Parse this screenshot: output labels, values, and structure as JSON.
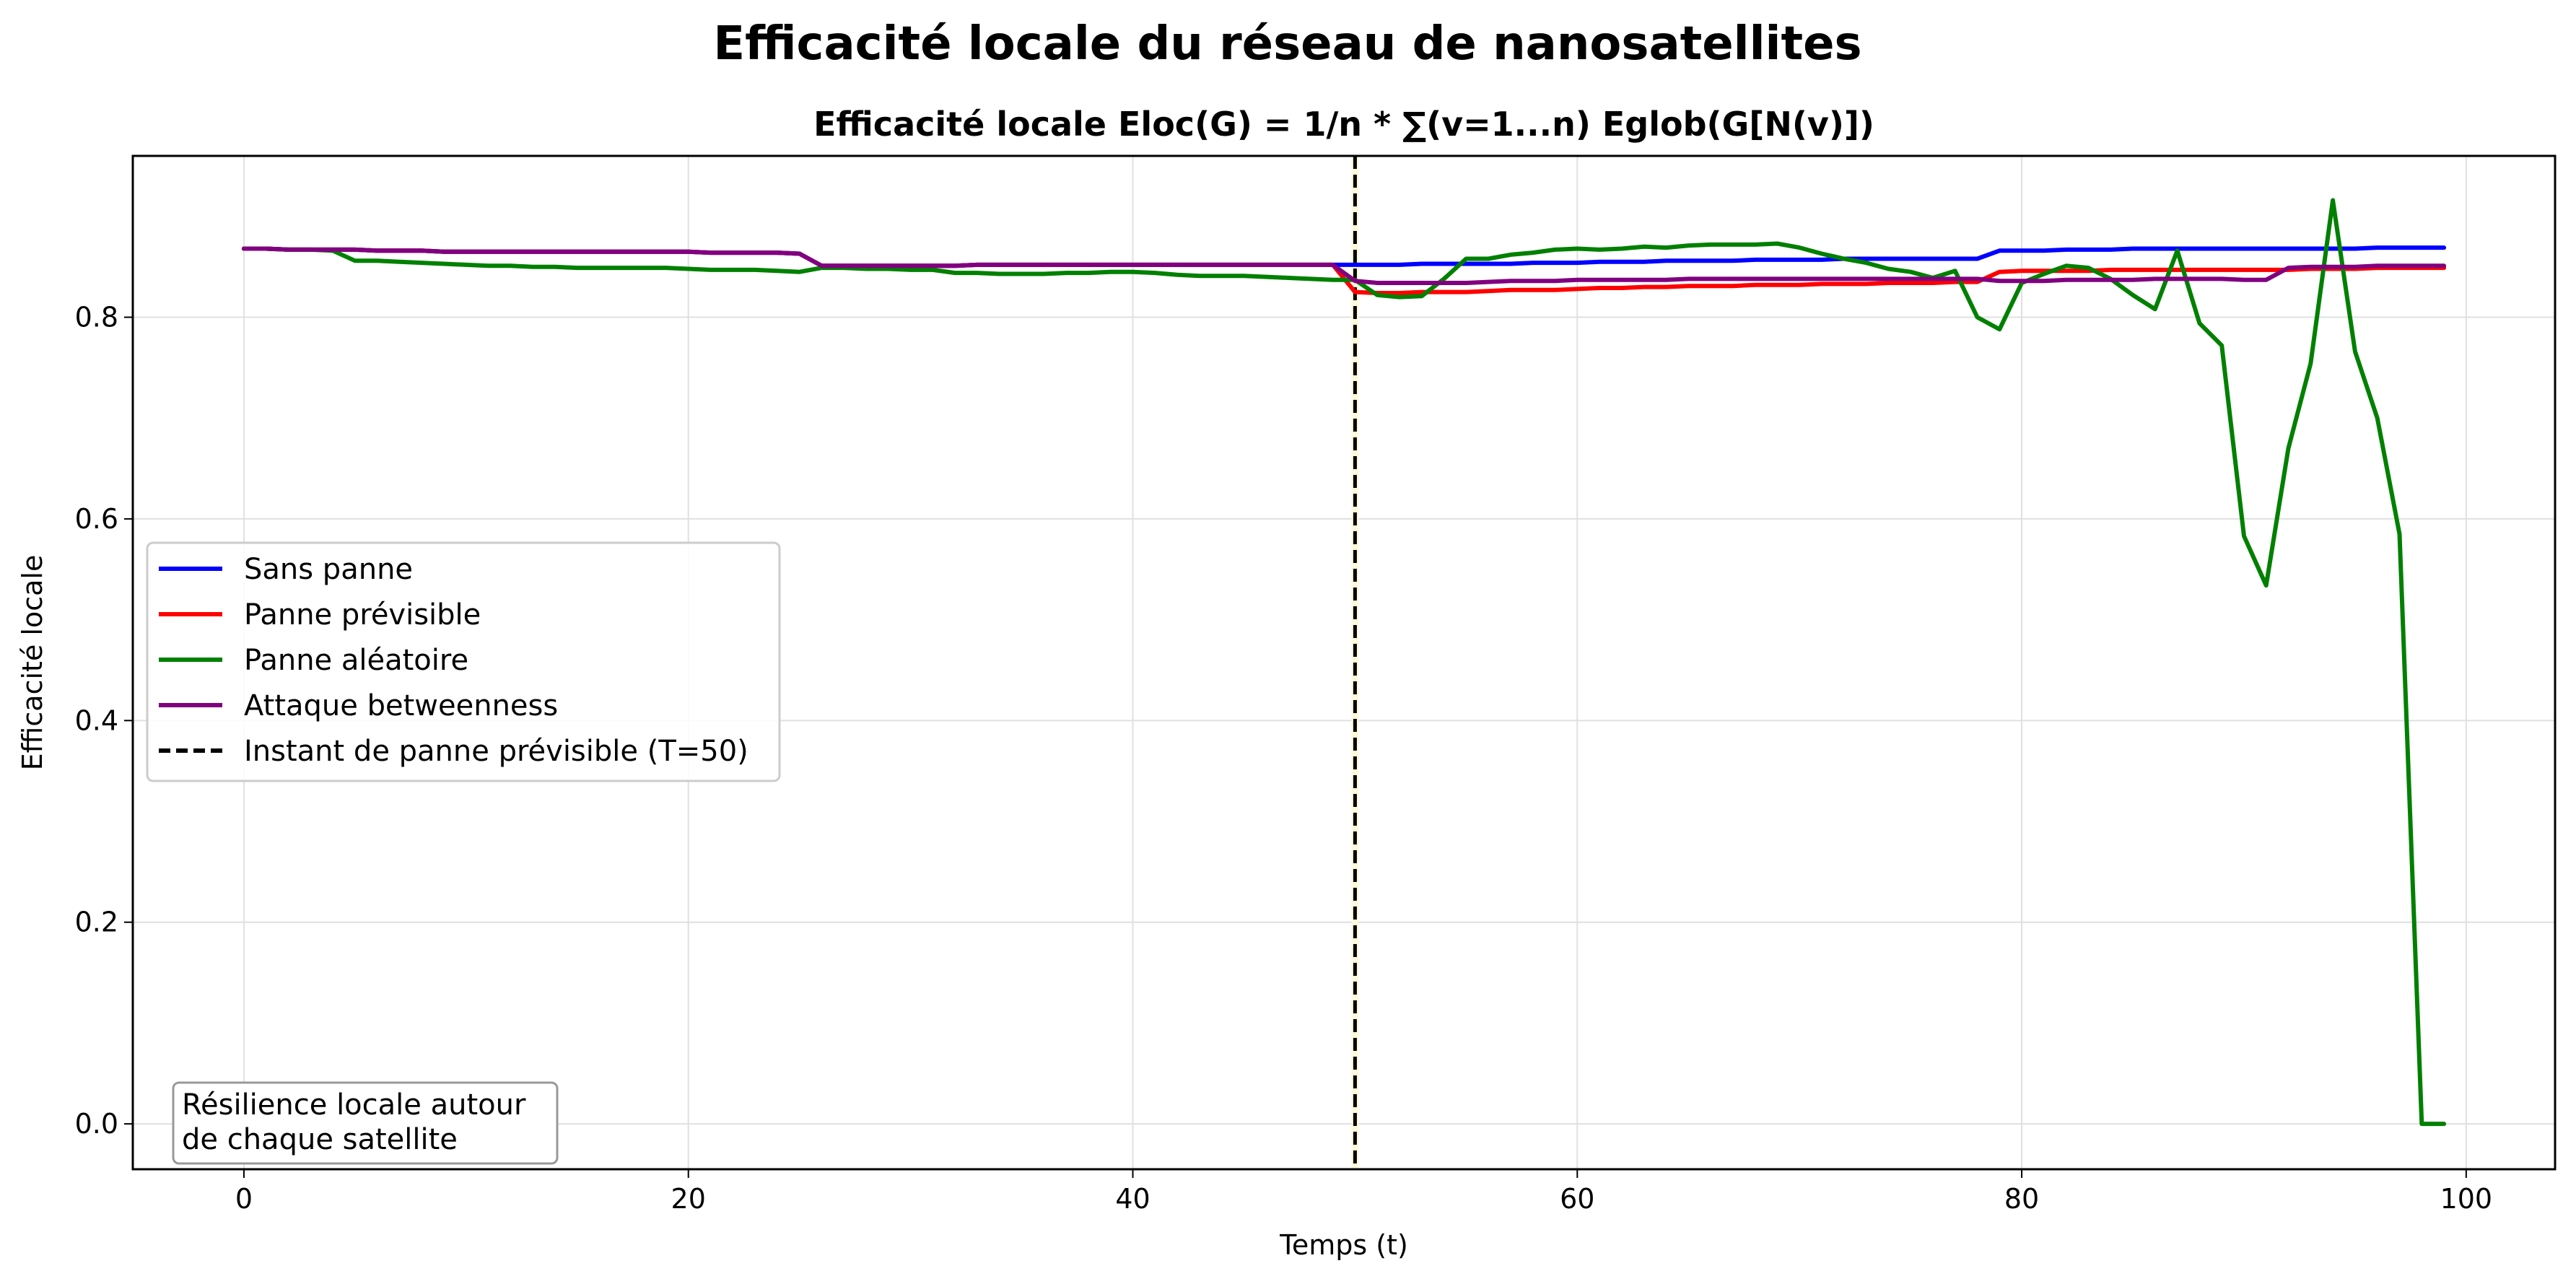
{
  "page": {
    "suptitle": "Efficacité locale du réseau de nanosatellites"
  },
  "chart_data": {
    "type": "line",
    "title": "Efficacité locale Eloc(G) = 1/n * ∑(v=1...n) Eglob(G[N(v)])",
    "xlabel": "Temps (t)",
    "ylabel": "Efficacité locale",
    "xlim": [
      -5,
      104
    ],
    "ylim": [
      -0.045,
      0.96
    ],
    "xticks": [
      0,
      20,
      40,
      60,
      80,
      100
    ],
    "xtick_labels": [
      "0",
      "20",
      "40",
      "60",
      "80",
      "100"
    ],
    "yticks": [
      0.0,
      0.2,
      0.4,
      0.6,
      0.8
    ],
    "ytick_labels": [
      "0.0",
      "0.2",
      "0.4",
      "0.6",
      "0.8"
    ],
    "grid": true,
    "legend_position": "center-left",
    "x": [
      0,
      1,
      2,
      3,
      4,
      5,
      6,
      7,
      8,
      9,
      10,
      11,
      12,
      13,
      14,
      15,
      16,
      17,
      18,
      19,
      20,
      21,
      22,
      23,
      24,
      25,
      26,
      27,
      28,
      29,
      30,
      31,
      32,
      33,
      34,
      35,
      36,
      37,
      38,
      39,
      40,
      41,
      42,
      43,
      44,
      45,
      46,
      47,
      48,
      49,
      50,
      51,
      52,
      53,
      54,
      55,
      56,
      57,
      58,
      59,
      60,
      61,
      62,
      63,
      64,
      65,
      66,
      67,
      68,
      69,
      70,
      71,
      72,
      73,
      74,
      75,
      76,
      77,
      78,
      79,
      80,
      81,
      82,
      83,
      84,
      85,
      86,
      87,
      88,
      89,
      90,
      91,
      92,
      93,
      94,
      95,
      96,
      97,
      98,
      99
    ],
    "series": [
      {
        "name": "Sans panne",
        "color": "#0000ff",
        "style": "solid",
        "values": [
          0.868,
          0.868,
          0.867,
          0.867,
          0.867,
          0.867,
          0.866,
          0.866,
          0.866,
          0.865,
          0.865,
          0.865,
          0.865,
          0.865,
          0.865,
          0.865,
          0.865,
          0.865,
          0.865,
          0.865,
          0.865,
          0.864,
          0.864,
          0.864,
          0.864,
          0.863,
          0.851,
          0.851,
          0.851,
          0.851,
          0.851,
          0.851,
          0.851,
          0.852,
          0.852,
          0.852,
          0.852,
          0.852,
          0.852,
          0.852,
          0.852,
          0.852,
          0.852,
          0.852,
          0.852,
          0.852,
          0.852,
          0.852,
          0.852,
          0.852,
          0.852,
          0.852,
          0.852,
          0.853,
          0.853,
          0.853,
          0.853,
          0.853,
          0.854,
          0.854,
          0.854,
          0.855,
          0.855,
          0.855,
          0.856,
          0.856,
          0.856,
          0.856,
          0.857,
          0.857,
          0.857,
          0.857,
          0.858,
          0.858,
          0.858,
          0.858,
          0.858,
          0.858,
          0.858,
          0.866,
          0.866,
          0.866,
          0.867,
          0.867,
          0.867,
          0.868,
          0.868,
          0.868,
          0.868,
          0.868,
          0.868,
          0.868,
          0.868,
          0.868,
          0.868,
          0.868,
          0.869,
          0.869,
          0.869,
          0.869
        ]
      },
      {
        "name": "Panne prévisible",
        "color": "#ff0000",
        "style": "solid",
        "values": [
          0.868,
          0.868,
          0.867,
          0.867,
          0.867,
          0.867,
          0.866,
          0.866,
          0.866,
          0.865,
          0.865,
          0.865,
          0.865,
          0.865,
          0.865,
          0.865,
          0.865,
          0.865,
          0.865,
          0.865,
          0.865,
          0.864,
          0.864,
          0.864,
          0.864,
          0.863,
          0.851,
          0.851,
          0.851,
          0.851,
          0.851,
          0.851,
          0.851,
          0.852,
          0.852,
          0.852,
          0.852,
          0.852,
          0.852,
          0.852,
          0.852,
          0.852,
          0.852,
          0.852,
          0.852,
          0.852,
          0.852,
          0.852,
          0.852,
          0.852,
          0.825,
          0.824,
          0.824,
          0.825,
          0.825,
          0.825,
          0.826,
          0.827,
          0.827,
          0.827,
          0.828,
          0.829,
          0.829,
          0.83,
          0.83,
          0.831,
          0.831,
          0.831,
          0.832,
          0.832,
          0.832,
          0.833,
          0.833,
          0.833,
          0.834,
          0.834,
          0.834,
          0.835,
          0.835,
          0.845,
          0.846,
          0.846,
          0.846,
          0.846,
          0.847,
          0.847,
          0.847,
          0.847,
          0.847,
          0.847,
          0.847,
          0.847,
          0.847,
          0.848,
          0.848,
          0.848,
          0.849,
          0.849,
          0.849,
          0.849
        ]
      },
      {
        "name": "Panne aléatoire",
        "color": "#008000",
        "style": "solid",
        "values": [
          0.868,
          0.868,
          0.867,
          0.867,
          0.866,
          0.856,
          0.856,
          0.855,
          0.854,
          0.853,
          0.852,
          0.851,
          0.851,
          0.85,
          0.85,
          0.849,
          0.849,
          0.849,
          0.849,
          0.849,
          0.848,
          0.847,
          0.847,
          0.847,
          0.846,
          0.845,
          0.849,
          0.849,
          0.848,
          0.848,
          0.847,
          0.847,
          0.844,
          0.844,
          0.843,
          0.843,
          0.843,
          0.844,
          0.844,
          0.845,
          0.845,
          0.844,
          0.842,
          0.841,
          0.841,
          0.841,
          0.84,
          0.839,
          0.838,
          0.837,
          0.837,
          0.822,
          0.82,
          0.821,
          0.838,
          0.858,
          0.858,
          0.862,
          0.864,
          0.867,
          0.868,
          0.867,
          0.868,
          0.87,
          0.869,
          0.871,
          0.872,
          0.872,
          0.872,
          0.873,
          0.869,
          0.863,
          0.858,
          0.854,
          0.848,
          0.845,
          0.839,
          0.846,
          0.8,
          0.788,
          0.834,
          0.843,
          0.851,
          0.849,
          0.838,
          0.822,
          0.808,
          0.866,
          0.794,
          0.772,
          0.583,
          0.534,
          0.67,
          0.754,
          0.916,
          0.766,
          0.7,
          0.585,
          0.0,
          0.0
        ]
      },
      {
        "name": "Attaque betweenness",
        "color": "#800080",
        "style": "solid",
        "values": [
          0.868,
          0.868,
          0.867,
          0.867,
          0.867,
          0.867,
          0.866,
          0.866,
          0.866,
          0.865,
          0.865,
          0.865,
          0.865,
          0.865,
          0.865,
          0.865,
          0.865,
          0.865,
          0.865,
          0.865,
          0.865,
          0.864,
          0.864,
          0.864,
          0.864,
          0.863,
          0.851,
          0.851,
          0.851,
          0.851,
          0.851,
          0.851,
          0.851,
          0.852,
          0.852,
          0.852,
          0.852,
          0.852,
          0.852,
          0.852,
          0.852,
          0.852,
          0.852,
          0.852,
          0.852,
          0.852,
          0.852,
          0.852,
          0.852,
          0.852,
          0.836,
          0.834,
          0.834,
          0.834,
          0.834,
          0.834,
          0.835,
          0.836,
          0.836,
          0.836,
          0.837,
          0.837,
          0.837,
          0.837,
          0.837,
          0.838,
          0.838,
          0.838,
          0.838,
          0.838,
          0.838,
          0.838,
          0.838,
          0.838,
          0.838,
          0.838,
          0.838,
          0.838,
          0.838,
          0.836,
          0.836,
          0.836,
          0.837,
          0.837,
          0.837,
          0.837,
          0.838,
          0.838,
          0.838,
          0.838,
          0.837,
          0.837,
          0.849,
          0.85,
          0.85,
          0.85,
          0.851,
          0.851,
          0.851,
          0.851
        ]
      }
    ],
    "vlines": [
      {
        "name": "Instant de panne prévisible (T=50)",
        "x": 50,
        "color": "#000000",
        "style": "dashed"
      }
    ],
    "annotation": {
      "lines": [
        "Résilience locale autour",
        "de chaque satellite"
      ],
      "position": "bottom-left"
    }
  }
}
